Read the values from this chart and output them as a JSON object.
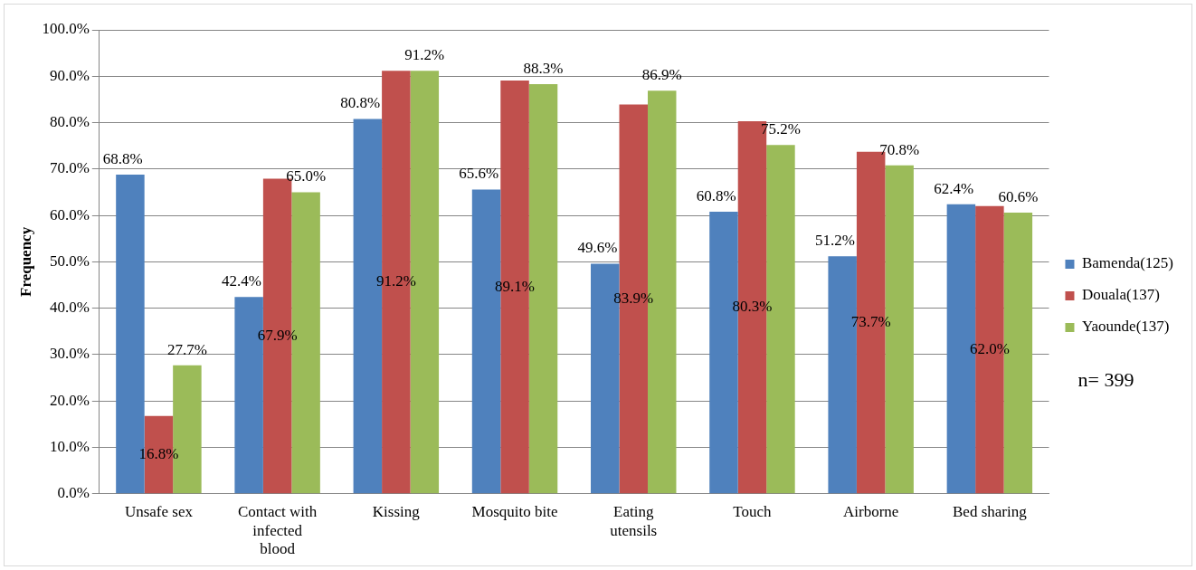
{
  "chart_data": {
    "type": "bar",
    "ylabel": "Frequency",
    "categories": [
      "Unsafe sex",
      "Contact with infected blood",
      "Kissing",
      "Mosquito bite",
      "Eating utensils",
      "Touch",
      "Airborne",
      "Bed sharing"
    ],
    "series": [
      {
        "name": "Bamenda(125)",
        "color": "#4f81bd",
        "values": [
          68.8,
          42.4,
          80.8,
          65.6,
          49.6,
          60.8,
          51.2,
          62.4
        ],
        "value_labels": [
          "68.8%",
          "42.4%",
          "80.8%",
          "65.6%",
          "49.6%",
          "60.8%",
          "51.2%",
          "62.4%"
        ]
      },
      {
        "name": "Douala(137)",
        "color": "#c0504d",
        "values": [
          16.8,
          67.9,
          91.2,
          89.1,
          83.9,
          80.3,
          73.7,
          62.0
        ],
        "value_labels": [
          "16.8%",
          "67.9%",
          "91.2%",
          "89.1%",
          "83.9%",
          "80.3%",
          "73.7%",
          "62.0%"
        ]
      },
      {
        "name": "Yaounde(137)",
        "color": "#9bbb59",
        "values": [
          27.7,
          65.0,
          91.2,
          88.3,
          86.9,
          75.2,
          70.8,
          60.6
        ],
        "value_labels": [
          "27.7%",
          "65.0%",
          "91.2%",
          "88.3%",
          "86.9%",
          "75.2%",
          "70.8%",
          "60.6%"
        ]
      }
    ],
    "ylim": [
      0,
      100
    ],
    "yticks": [
      {
        "value": 0,
        "label": "0.0%"
      },
      {
        "value": 10,
        "label": "10.0%"
      },
      {
        "value": 20,
        "label": "20.0%"
      },
      {
        "value": 30,
        "label": "30.0%"
      },
      {
        "value": 40,
        "label": "40.0%"
      },
      {
        "value": 50,
        "label": "50.0%"
      },
      {
        "value": 60,
        "label": "60.0%"
      },
      {
        "value": 70,
        "label": "70.0%"
      },
      {
        "value": 80,
        "label": "80.0%"
      },
      {
        "value": 90,
        "label": "90.0%"
      },
      {
        "value": 100,
        "label": "100.0%"
      }
    ],
    "grid": "y",
    "legend": "right",
    "annotations": [
      "n= 399"
    ]
  }
}
